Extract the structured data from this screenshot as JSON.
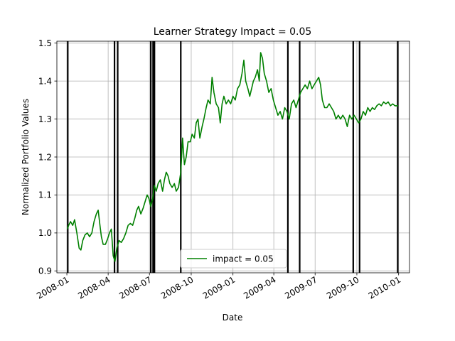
{
  "chart_data": {
    "type": "line",
    "title": "Learner Strategy Impact = 0.05",
    "xlabel": "Date",
    "ylabel": "Normalized Portfolio Values",
    "xlim": [
      "2007-12-10",
      "2010-01-25"
    ],
    "ylim": [
      0.895,
      1.505
    ],
    "x_ticks": [
      "2008-01-01",
      "2008-04-01",
      "2008-07-01",
      "2008-10-01",
      "2009-01-01",
      "2009-04-01",
      "2009-07-01",
      "2009-10-01",
      "2010-01-01"
    ],
    "x_tick_labels": [
      "2008-01",
      "2008-04",
      "2008-07",
      "2008-10",
      "2009-01",
      "2009-04",
      "2009-07",
      "2009-10",
      "2010-01"
    ],
    "y_ticks": [
      0.9,
      1.0,
      1.1,
      1.2,
      1.3,
      1.4,
      1.5
    ],
    "y_tick_labels": [
      "0.9",
      "1.0",
      "1.1",
      "1.2",
      "1.3",
      "1.4",
      "1.5"
    ],
    "grid": true,
    "legend": {
      "position": "lower-center"
    },
    "series": [
      {
        "name": "impact = 0.05",
        "color": "#008000",
        "points": [
          [
            "2008-01-02",
            1.01
          ],
          [
            "2008-01-05",
            1.02
          ],
          [
            "2008-01-09",
            1.03
          ],
          [
            "2008-01-14",
            1.02
          ],
          [
            "2008-01-18",
            1.035
          ],
          [
            "2008-01-23",
            1.0
          ],
          [
            "2008-01-28",
            0.96
          ],
          [
            "2008-02-01",
            0.955
          ],
          [
            "2008-02-05",
            0.98
          ],
          [
            "2008-02-10",
            0.995
          ],
          [
            "2008-02-15",
            1.0
          ],
          [
            "2008-02-20",
            0.99
          ],
          [
            "2008-02-25",
            1.0
          ],
          [
            "2008-03-01",
            1.03
          ],
          [
            "2008-03-06",
            1.05
          ],
          [
            "2008-03-10",
            1.06
          ],
          [
            "2008-03-14",
            1.02
          ],
          [
            "2008-03-17",
            0.99
          ],
          [
            "2008-03-21",
            0.97
          ],
          [
            "2008-03-26",
            0.97
          ],
          [
            "2008-03-31",
            0.985
          ],
          [
            "2008-04-04",
            1.0
          ],
          [
            "2008-04-08",
            1.01
          ],
          [
            "2008-04-12",
            0.94
          ],
          [
            "2008-04-16",
            0.925
          ],
          [
            "2008-04-20",
            0.96
          ],
          [
            "2008-04-25",
            0.98
          ],
          [
            "2008-04-30",
            0.975
          ],
          [
            "2008-05-05",
            0.985
          ],
          [
            "2008-05-10",
            1.0
          ],
          [
            "2008-05-15",
            1.02
          ],
          [
            "2008-05-20",
            1.025
          ],
          [
            "2008-05-25",
            1.02
          ],
          [
            "2008-05-30",
            1.04
          ],
          [
            "2008-06-03",
            1.06
          ],
          [
            "2008-06-07",
            1.07
          ],
          [
            "2008-06-12",
            1.05
          ],
          [
            "2008-06-17",
            1.065
          ],
          [
            "2008-06-22",
            1.085
          ],
          [
            "2008-06-26",
            1.1
          ],
          [
            "2008-06-30",
            1.09
          ],
          [
            "2008-07-04",
            1.07
          ],
          [
            "2008-07-08",
            1.09
          ],
          [
            "2008-07-12",
            1.125
          ],
          [
            "2008-07-16",
            1.11
          ],
          [
            "2008-07-20",
            1.13
          ],
          [
            "2008-07-25",
            1.14
          ],
          [
            "2008-07-30",
            1.11
          ],
          [
            "2008-08-03",
            1.14
          ],
          [
            "2008-08-07",
            1.16
          ],
          [
            "2008-08-11",
            1.15
          ],
          [
            "2008-08-15",
            1.13
          ],
          [
            "2008-08-20",
            1.12
          ],
          [
            "2008-08-25",
            1.13
          ],
          [
            "2008-08-29",
            1.11
          ],
          [
            "2008-09-03",
            1.12
          ],
          [
            "2008-09-08",
            1.16
          ],
          [
            "2008-09-12",
            1.25
          ],
          [
            "2008-09-16",
            1.18
          ],
          [
            "2008-09-20",
            1.2
          ],
          [
            "2008-09-24",
            1.24
          ],
          [
            "2008-09-29",
            1.24
          ],
          [
            "2008-10-03",
            1.26
          ],
          [
            "2008-10-08",
            1.25
          ],
          [
            "2008-10-12",
            1.29
          ],
          [
            "2008-10-16",
            1.3
          ],
          [
            "2008-10-20",
            1.25
          ],
          [
            "2008-10-25",
            1.28
          ],
          [
            "2008-10-29",
            1.3
          ],
          [
            "2008-11-03",
            1.33
          ],
          [
            "2008-11-07",
            1.35
          ],
          [
            "2008-11-12",
            1.34
          ],
          [
            "2008-11-16",
            1.41
          ],
          [
            "2008-11-20",
            1.37
          ],
          [
            "2008-11-25",
            1.34
          ],
          [
            "2008-11-30",
            1.33
          ],
          [
            "2008-12-04",
            1.29
          ],
          [
            "2008-12-08",
            1.34
          ],
          [
            "2008-12-12",
            1.36
          ],
          [
            "2008-12-17",
            1.34
          ],
          [
            "2008-12-22",
            1.35
          ],
          [
            "2008-12-27",
            1.34
          ],
          [
            "2009-01-01",
            1.36
          ],
          [
            "2009-01-06",
            1.35
          ],
          [
            "2009-01-11",
            1.38
          ],
          [
            "2009-01-16",
            1.39
          ],
          [
            "2009-01-21",
            1.42
          ],
          [
            "2009-01-25",
            1.455
          ],
          [
            "2009-01-29",
            1.4
          ],
          [
            "2009-02-03",
            1.38
          ],
          [
            "2009-02-07",
            1.36
          ],
          [
            "2009-02-11",
            1.38
          ],
          [
            "2009-02-15",
            1.4
          ],
          [
            "2009-02-19",
            1.41
          ],
          [
            "2009-02-24",
            1.43
          ],
          [
            "2009-02-28",
            1.4
          ],
          [
            "2009-03-03",
            1.475
          ],
          [
            "2009-03-07",
            1.46
          ],
          [
            "2009-03-11",
            1.42
          ],
          [
            "2009-03-16",
            1.4
          ],
          [
            "2009-03-21",
            1.37
          ],
          [
            "2009-03-26",
            1.38
          ],
          [
            "2009-03-31",
            1.35
          ],
          [
            "2009-04-05",
            1.33
          ],
          [
            "2009-04-10",
            1.31
          ],
          [
            "2009-04-15",
            1.32
          ],
          [
            "2009-04-20",
            1.3
          ],
          [
            "2009-04-25",
            1.33
          ],
          [
            "2009-04-30",
            1.32
          ],
          [
            "2009-05-05",
            1.3
          ],
          [
            "2009-05-10",
            1.34
          ],
          [
            "2009-05-15",
            1.35
          ],
          [
            "2009-05-20",
            1.33
          ],
          [
            "2009-05-25",
            1.35
          ],
          [
            "2009-05-30",
            1.37
          ],
          [
            "2009-06-04",
            1.38
          ],
          [
            "2009-06-09",
            1.39
          ],
          [
            "2009-06-14",
            1.38
          ],
          [
            "2009-06-19",
            1.4
          ],
          [
            "2009-06-24",
            1.38
          ],
          [
            "2009-06-29",
            1.39
          ],
          [
            "2009-07-04",
            1.4
          ],
          [
            "2009-07-09",
            1.41
          ],
          [
            "2009-07-13",
            1.39
          ],
          [
            "2009-07-17",
            1.35
          ],
          [
            "2009-07-22",
            1.33
          ],
          [
            "2009-07-27",
            1.33
          ],
          [
            "2009-08-01",
            1.34
          ],
          [
            "2009-08-06",
            1.33
          ],
          [
            "2009-08-11",
            1.32
          ],
          [
            "2009-08-16",
            1.3
          ],
          [
            "2009-08-21",
            1.31
          ],
          [
            "2009-08-26",
            1.3
          ],
          [
            "2009-08-31",
            1.31
          ],
          [
            "2009-09-05",
            1.3
          ],
          [
            "2009-09-10",
            1.28
          ],
          [
            "2009-09-15",
            1.31
          ],
          [
            "2009-09-20",
            1.3
          ],
          [
            "2009-09-25",
            1.31
          ],
          [
            "2009-09-30",
            1.3
          ],
          [
            "2009-10-05",
            1.29
          ],
          [
            "2009-10-10",
            1.3
          ],
          [
            "2009-10-15",
            1.32
          ],
          [
            "2009-10-20",
            1.31
          ],
          [
            "2009-10-25",
            1.33
          ],
          [
            "2009-10-30",
            1.32
          ],
          [
            "2009-11-04",
            1.33
          ],
          [
            "2009-11-09",
            1.325
          ],
          [
            "2009-11-14",
            1.335
          ],
          [
            "2009-11-19",
            1.34
          ],
          [
            "2009-11-24",
            1.335
          ],
          [
            "2009-11-29",
            1.345
          ],
          [
            "2009-12-04",
            1.34
          ],
          [
            "2009-12-09",
            1.345
          ],
          [
            "2009-12-14",
            1.335
          ],
          [
            "2009-12-19",
            1.34
          ],
          [
            "2009-12-24",
            1.335
          ],
          [
            "2009-12-31",
            1.335
          ]
        ]
      }
    ],
    "vertical_lines": {
      "color": "#000000",
      "dates": [
        "2008-01-03",
        "2008-04-15",
        "2008-04-22",
        "2008-07-04",
        "2008-07-09",
        "2008-07-12",
        "2008-09-08",
        "2009-05-02",
        "2009-05-28",
        "2009-09-23",
        "2009-10-07",
        "2009-12-30"
      ]
    }
  }
}
